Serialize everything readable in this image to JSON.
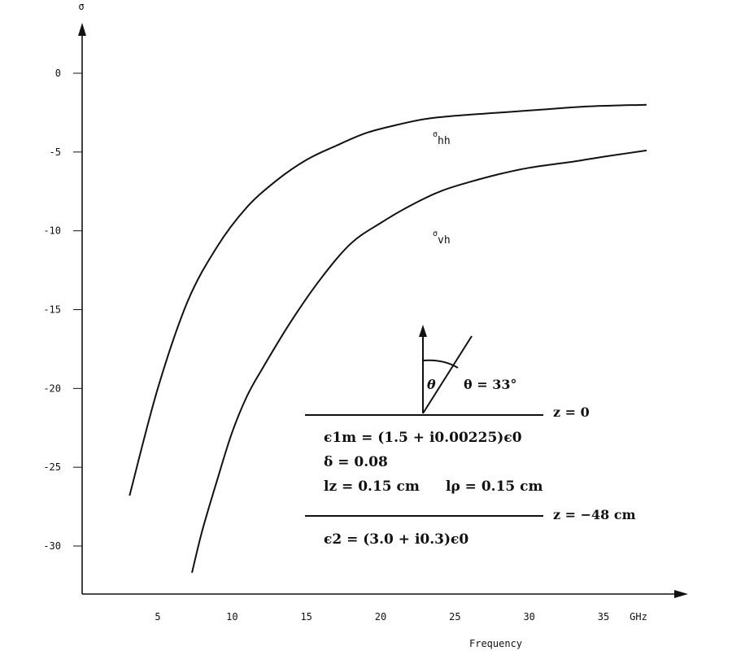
{
  "chart_data": {
    "type": "line",
    "ylabel": "σ",
    "xlabel": "Frequency",
    "x_unit": "GHz",
    "xlim": [
      0,
      38
    ],
    "ylim": [
      -33,
      3
    ],
    "x_ticks": [
      5,
      10,
      15,
      20,
      25,
      30,
      35
    ],
    "y_ticks": [
      0,
      -5,
      -10,
      -15,
      -20,
      -25,
      -30
    ],
    "grid": false,
    "series": [
      {
        "name": "σhh",
        "label_main": "σ",
        "label_sub": "hh",
        "x": [
          3.1,
          5,
          7,
          9,
          11,
          13,
          15,
          17,
          19,
          21,
          23,
          25,
          28,
          31,
          34,
          37.9
        ],
        "y": [
          -26.8,
          -20.0,
          -14.5,
          -11.0,
          -8.5,
          -6.8,
          -5.5,
          -4.6,
          -3.8,
          -3.3,
          -2.9,
          -2.7,
          -2.5,
          -2.3,
          -2.1,
          -2.0
        ]
      },
      {
        "name": "σvh",
        "label_main": "σ",
        "label_sub": "vh",
        "x": [
          7.3,
          8,
          9,
          10,
          11,
          12,
          14,
          16,
          18,
          20,
          22,
          24,
          26,
          28,
          30,
          33,
          35,
          37.9
        ],
        "y": [
          -31.7,
          -29.0,
          -25.8,
          -22.8,
          -20.5,
          -18.8,
          -15.7,
          -13.0,
          -10.8,
          -9.5,
          -8.4,
          -7.5,
          -6.9,
          -6.4,
          -6.0,
          -5.6,
          -5.3,
          -4.9
        ]
      }
    ],
    "diagram": {
      "theta_symbol": "θ",
      "theta_text": "θ = 33°",
      "z_top": "z = 0",
      "eps1_text": "ϵ1m = (1.5 + i0.00225)ϵ0",
      "delta_text": "δ = 0.08",
      "lz_text": "lz = 0.15 cm",
      "lrho_text": "lρ = 0.15 cm",
      "z_bottom": "z = −48 cm",
      "eps2_text": "ϵ2 = (3.0 + i0.3)ϵ0"
    }
  }
}
